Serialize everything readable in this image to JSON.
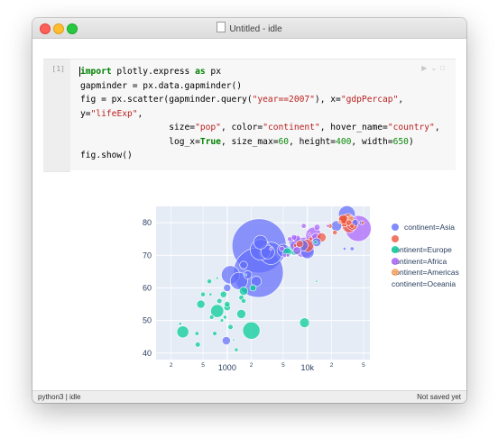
{
  "window": {
    "title": "Untitled - idle"
  },
  "cell": {
    "prompt": "[1]",
    "code_lines": [
      [
        {
          "t": "import",
          "c": "kw"
        },
        {
          "t": " plotly.express "
        },
        {
          "t": "as",
          "c": "kw"
        },
        {
          "t": " px"
        }
      ],
      [
        {
          "t": "gapminder = px.data.gapminder()"
        }
      ],
      [
        {
          "t": "fig = px.scatter(gapminder.query("
        },
        {
          "t": "\"year==2007\"",
          "c": "str"
        },
        {
          "t": "), x="
        },
        {
          "t": "\"gdpPercap\"",
          "c": "str"
        },
        {
          "t": ","
        }
      ],
      [
        {
          "t": "y="
        },
        {
          "t": "\"lifeExp\"",
          "c": "str"
        },
        {
          "t": ","
        }
      ],
      [
        {
          "t": "                 size="
        },
        {
          "t": "\"pop\"",
          "c": "str"
        },
        {
          "t": ", color="
        },
        {
          "t": "\"continent\"",
          "c": "str"
        },
        {
          "t": ", hover_name="
        },
        {
          "t": "\"country\"",
          "c": "str"
        },
        {
          "t": ","
        }
      ],
      [
        {
          "t": "                 log_x="
        },
        {
          "t": "True",
          "c": "kw"
        },
        {
          "t": ", size_max="
        },
        {
          "t": "60",
          "c": "num"
        },
        {
          "t": ", height="
        },
        {
          "t": "400",
          "c": "num"
        },
        {
          "t": ", width="
        },
        {
          "t": "650",
          "c": "num"
        },
        {
          "t": ")"
        }
      ],
      [
        {
          "t": "fig.show()"
        }
      ]
    ]
  },
  "statusbar": {
    "kernel": "python3 | idle",
    "save_state": "Not saved yet"
  },
  "chart_data": {
    "type": "scatter",
    "x_scale": "log",
    "xlim": [
      130,
      60000
    ],
    "ylim": [
      38,
      85
    ],
    "ytick_labels": [
      "40",
      "50",
      "60",
      "70",
      "80"
    ],
    "xtick_labels": [
      {
        "value": 200,
        "label": "2",
        "minor": true
      },
      {
        "value": 500,
        "label": "5",
        "minor": true
      },
      {
        "value": 1000,
        "label": "1000",
        "minor": false
      },
      {
        "value": 2000,
        "label": "2",
        "minor": true
      },
      {
        "value": 5000,
        "label": "5",
        "minor": true
      },
      {
        "value": 10000,
        "label": "10k",
        "minor": false
      },
      {
        "value": 20000,
        "label": "2",
        "minor": true
      },
      {
        "value": 50000,
        "label": "5",
        "minor": true
      }
    ],
    "grid": true,
    "legend_position": "right",
    "series": [
      {
        "name": "continent=Asia",
        "color": "#636efa",
        "points": [
          [
            2500,
            72.9,
            1318
          ],
          [
            2450,
            64.7,
            1110
          ],
          [
            3500,
            70.6,
            224
          ],
          [
            1100,
            64,
            150
          ],
          [
            2600,
            71.7,
            190
          ],
          [
            1400,
            62.1,
            135
          ],
          [
            3200,
            71,
            85
          ],
          [
            5000,
            71.5,
            70
          ],
          [
            10000,
            71,
            80
          ],
          [
            31000,
            82.6,
            127
          ],
          [
            7000,
            74,
            65
          ],
          [
            23000,
            79,
            49
          ],
          [
            13000,
            74,
            35
          ],
          [
            8600,
            73,
            60
          ],
          [
            2600,
            74,
            85
          ],
          [
            1600,
            67,
            27
          ],
          [
            1800,
            64,
            31
          ],
          [
            975,
            43.8,
            31
          ],
          [
            47000,
            80,
            7
          ],
          [
            39000,
            80,
            22
          ],
          [
            29000,
            72,
            4
          ],
          [
            36000,
            72,
            7
          ],
          [
            2300,
            62,
            47
          ],
          [
            1000,
            60,
            24
          ]
        ]
      },
      {
        "name": "continent=Europe",
        "color": "#ef553b",
        "points": [
          [
            33000,
            79,
            82
          ],
          [
            32000,
            81,
            61
          ],
          [
            36000,
            79.5,
            60
          ],
          [
            28500,
            80.5,
            58
          ],
          [
            28000,
            81,
            40
          ],
          [
            15000,
            75.5,
            38
          ],
          [
            8000,
            73.5,
            22
          ],
          [
            33000,
            80,
            16
          ],
          [
            36000,
            79,
            10
          ],
          [
            49000,
            80,
            5
          ],
          [
            10000,
            73,
            71
          ],
          [
            7000,
            73,
            5
          ],
          [
            19000,
            79,
            10
          ],
          [
            22000,
            77,
            10
          ],
          [
            11000,
            75,
            7
          ]
        ]
      },
      {
        "name": "continent=Africa",
        "color": "#00cc96",
        "points": [
          [
            2000,
            46.9,
            135
          ],
          [
            750,
            52.9,
            77
          ],
          [
            7000,
            72,
            74
          ],
          [
            5600,
            71,
            33
          ],
          [
            9200,
            49.3,
            44
          ],
          [
            1500,
            52,
            38
          ],
          [
            280,
            46.5,
            64
          ],
          [
            1000,
            54,
            20
          ],
          [
            1600,
            59,
            33
          ],
          [
            470,
            55,
            31
          ],
          [
            900,
            58,
            19
          ],
          [
            1000,
            55,
            15
          ],
          [
            600,
            62,
            10
          ],
          [
            800,
            56,
            12
          ],
          [
            500,
            58,
            10
          ],
          [
            1100,
            48,
            12
          ],
          [
            430,
            42.6,
            12
          ],
          [
            2100,
            60,
            18
          ],
          [
            700,
            46,
            8
          ],
          [
            640,
            51,
            9
          ],
          [
            260,
            49,
            4
          ],
          [
            1300,
            41,
            6
          ],
          [
            1600,
            56,
            10
          ],
          [
            860,
            50,
            5
          ],
          [
            1500,
            57,
            11
          ],
          [
            13000,
            62,
            1.5
          ],
          [
            12600,
            74,
            6
          ],
          [
            620,
            58,
            4
          ],
          [
            940,
            51,
            6
          ],
          [
            420,
            46,
            7
          ],
          [
            750,
            63,
            3
          ],
          [
            1200,
            44,
            2
          ],
          [
            1700,
            64,
            2
          ]
        ]
      },
      {
        "name": "continent=Americas",
        "color": "#ab63fa",
        "points": [
          [
            42950,
            78.2,
            301
          ],
          [
            9100,
            72.4,
            190
          ],
          [
            11900,
            76.2,
            108
          ],
          [
            12800,
            75.3,
            40
          ],
          [
            7000,
            72.9,
            44
          ],
          [
            7400,
            71.4,
            28
          ],
          [
            36300,
            80.7,
            33
          ],
          [
            13200,
            78.6,
            16
          ],
          [
            6000,
            75,
            9
          ],
          [
            4800,
            72,
            12
          ],
          [
            5700,
            70,
            6
          ],
          [
            9000,
            79,
            11
          ],
          [
            3500,
            72,
            3
          ],
          [
            6800,
            75.5,
            14
          ],
          [
            10600,
            76.4,
            3
          ],
          [
            7400,
            75,
            26
          ],
          [
            5200,
            70,
            8
          ],
          [
            18000,
            79,
            4
          ]
        ]
      },
      {
        "name": "continent=Oceania",
        "color": "#ffa15a",
        "points": [
          [
            34400,
            81.2,
            20
          ],
          [
            25200,
            80.2,
            4
          ]
        ]
      }
    ]
  }
}
